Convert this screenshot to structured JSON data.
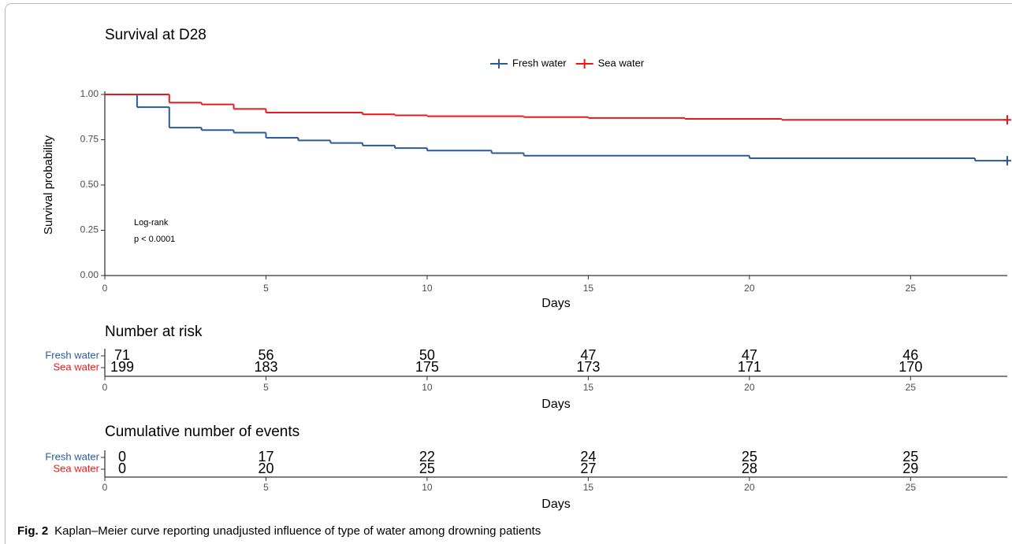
{
  "chart_data": [
    {
      "type": "step",
      "title": "Survival at D28",
      "xlabel": "Days",
      "ylabel": "Survival probability",
      "xlim": [
        0,
        28
      ],
      "ylim": [
        0,
        1
      ],
      "xticks": [
        0,
        5,
        10,
        15,
        20,
        25
      ],
      "yticks": [
        {
          "value": 0,
          "label": "0.00"
        },
        0.25,
        {
          "value": 0.5,
          "label": "0.50"
        },
        0.75,
        {
          "value": 1,
          "label": "1.00"
        }
      ],
      "legend": "top",
      "annotations": [
        "Log-rank",
        "p < 0.0001"
      ],
      "series": [
        {
          "name": "Fresh water",
          "color": "#2a5a98",
          "x": [
            0,
            1,
            2,
            3,
            4,
            5,
            6,
            7,
            8,
            9,
            10,
            12,
            13,
            20,
            27,
            28
          ],
          "values": [
            1,
            0.93,
            0.817,
            0.803,
            0.789,
            0.761,
            0.746,
            0.732,
            0.718,
            0.704,
            0.69,
            0.676,
            0.662,
            0.648,
            0.634,
            0.634
          ]
        },
        {
          "name": "Sea water",
          "color": "#e8191c",
          "x": [
            0,
            2,
            3,
            4,
            5,
            8,
            9,
            10,
            13,
            15,
            18,
            21,
            28
          ],
          "values": [
            1,
            0.955,
            0.945,
            0.92,
            0.9,
            0.89,
            0.885,
            0.88,
            0.875,
            0.87,
            0.865,
            0.86,
            0.86
          ]
        }
      ]
    },
    {
      "type": "table",
      "title": "Number at risk",
      "xlabel": "Days",
      "xlim": [
        0,
        28
      ],
      "xticks": [
        0,
        5,
        10,
        15,
        20,
        25
      ],
      "x": [
        0,
        5,
        10,
        15,
        20,
        25
      ],
      "series": [
        {
          "name": "Fresh water",
          "color": "#2a5a98",
          "values": [
            71,
            56,
            50,
            47,
            47,
            46
          ]
        },
        {
          "name": "Sea water",
          "color": "#e8191c",
          "values": [
            199,
            183,
            175,
            173,
            171,
            170
          ]
        }
      ]
    },
    {
      "type": "table",
      "title": "Cumulative number of events",
      "xlabel": "Days",
      "xlim": [
        0,
        28
      ],
      "xticks": [
        0,
        5,
        10,
        15,
        20,
        25
      ],
      "x": [
        0,
        5,
        10,
        15,
        20,
        25
      ],
      "series": [
        {
          "name": "Fresh water",
          "color": "#2a5a98",
          "values": [
            0,
            17,
            22,
            24,
            25,
            25
          ]
        },
        {
          "name": "Sea water",
          "color": "#e8191c",
          "values": [
            0,
            20,
            25,
            27,
            28,
            29
          ]
        }
      ]
    }
  ],
  "caption": {
    "label": "Fig. 2",
    "text": "Kaplan–Meier curve reporting unadjusted influence of type of water among drowning patients"
  }
}
